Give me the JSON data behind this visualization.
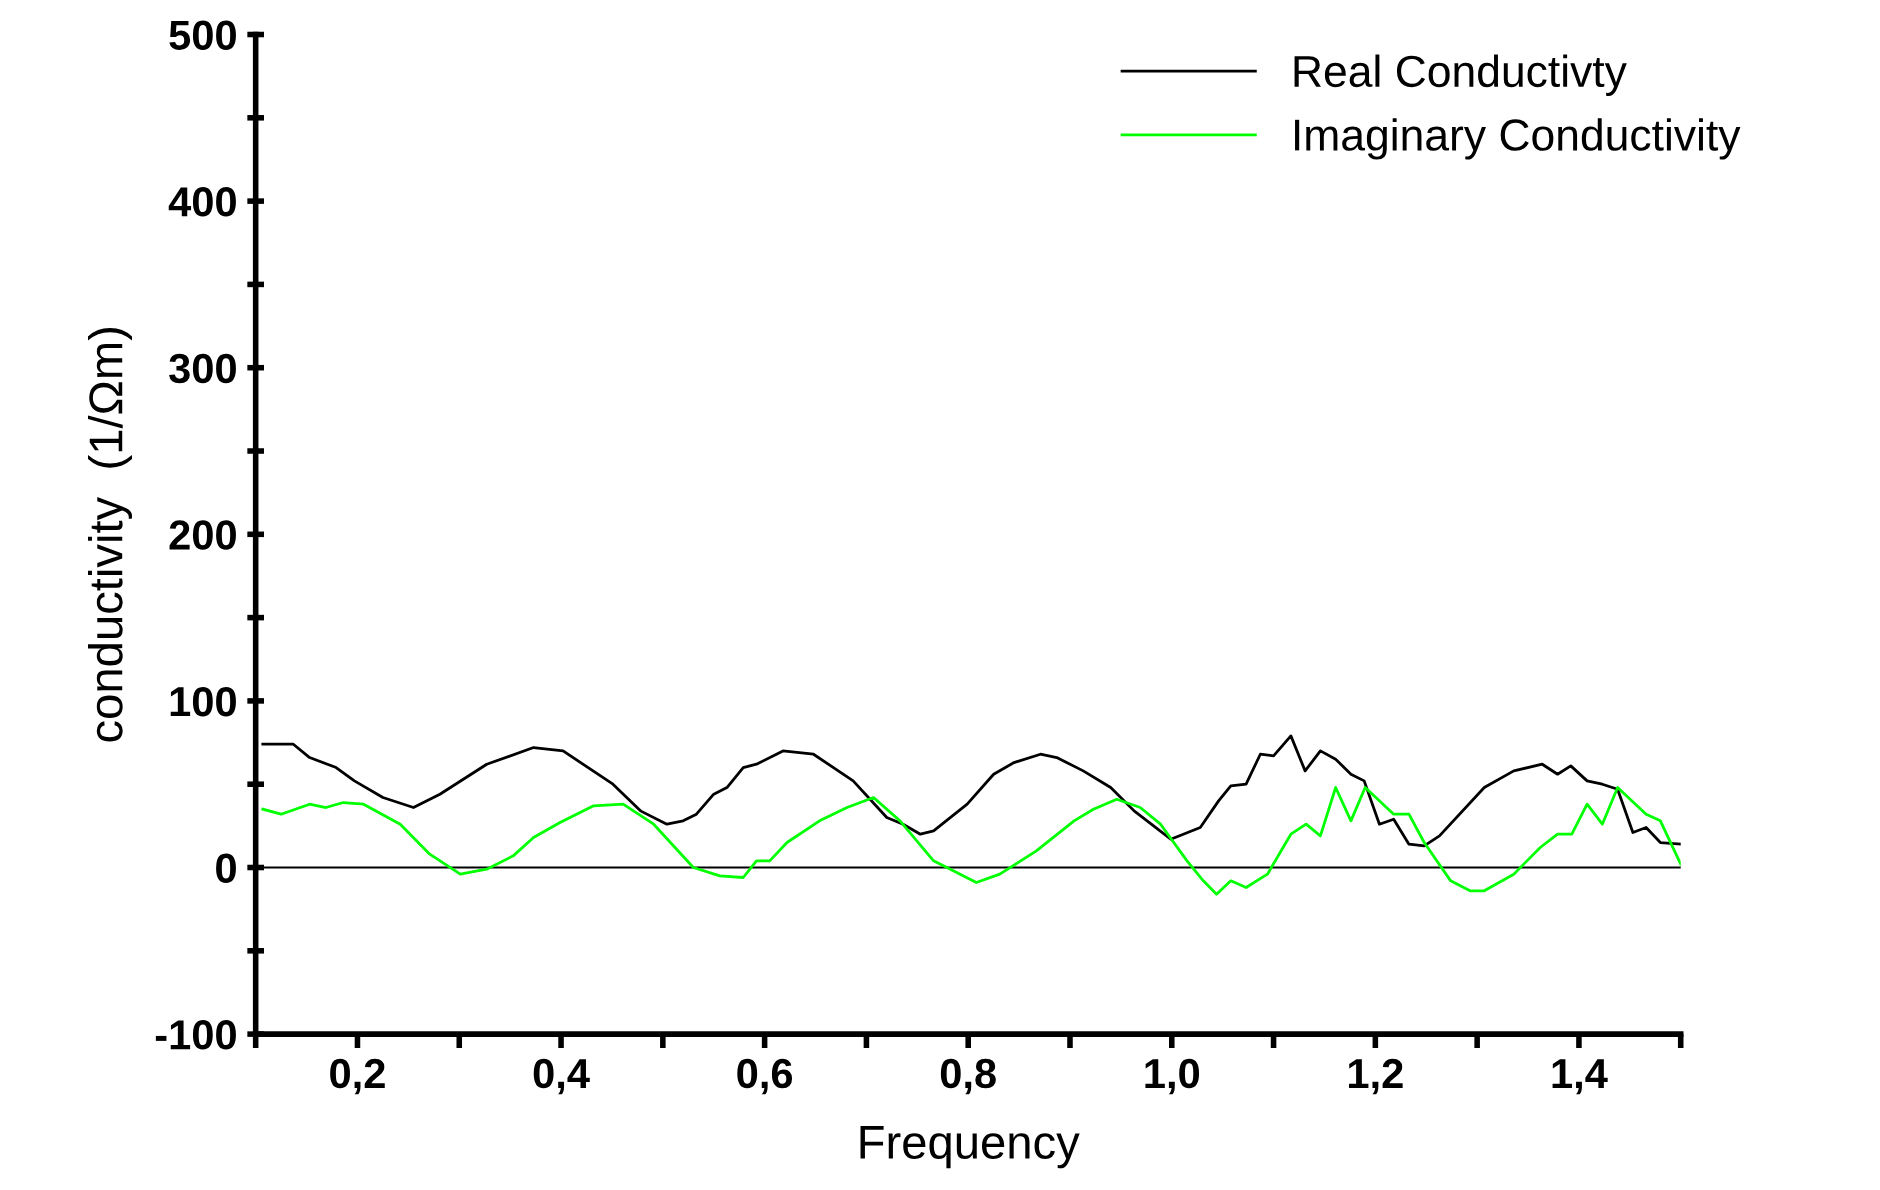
{
  "chart_data": {
    "type": "line",
    "xlabel": "Frequency",
    "ylabel": "conductivity  (1/Ωm)",
    "xlim": [
      0.1,
      1.5
    ],
    "ylim": [
      -100,
      500
    ],
    "xticks": [
      {
        "value": 0.1,
        "label": null
      },
      {
        "value": 0.2,
        "label": "0,2"
      },
      {
        "value": 0.3,
        "label": null
      },
      {
        "value": 0.4,
        "label": "0,4"
      },
      {
        "value": 0.5,
        "label": null
      },
      {
        "value": 0.6,
        "label": "0,6"
      },
      {
        "value": 0.7,
        "label": null
      },
      {
        "value": 0.8,
        "label": "0,8"
      },
      {
        "value": 0.9,
        "label": null
      },
      {
        "value": 1.0,
        "label": "1,0"
      },
      {
        "value": 1.1,
        "label": null
      },
      {
        "value": 1.2,
        "label": "1,2"
      },
      {
        "value": 1.3,
        "label": null
      },
      {
        "value": 1.4,
        "label": "1,4"
      },
      {
        "value": 1.5,
        "label": null
      }
    ],
    "yticks": [
      -100,
      {
        "value": -50,
        "label": null
      },
      0,
      {
        "value": 50,
        "label": null
      },
      100,
      {
        "value": 150,
        "label": null
      },
      200,
      {
        "value": 250,
        "label": null
      },
      300,
      {
        "value": 350,
        "label": null
      },
      400,
      {
        "value": 450,
        "label": null
      },
      500
    ],
    "grid": false,
    "legend": "top right",
    "marker": "none",
    "line_style": "solid",
    "ref_lines": [
      {
        "axis": "y",
        "value": 0,
        "label": null,
        "color": "#000000"
      }
    ],
    "series": [
      {
        "name": "Real Conductivty",
        "color": "#000000",
        "x": [
          0.107,
          0.137,
          0.153,
          0.179,
          0.197,
          0.225,
          0.255,
          0.281,
          0.327,
          0.373,
          0.402,
          0.451,
          0.478,
          0.504,
          0.52,
          0.533,
          0.55,
          0.563,
          0.579,
          0.592,
          0.618,
          0.648,
          0.687,
          0.72,
          0.736,
          0.753,
          0.766,
          0.799,
          0.825,
          0.845,
          0.871,
          0.887,
          0.913,
          0.94,
          0.963,
          0.999,
          1.028,
          1.046,
          1.058,
          1.073,
          1.087,
          1.1,
          1.117,
          1.131,
          1.146,
          1.161,
          1.176,
          1.189,
          1.204,
          1.218,
          1.233,
          1.248,
          1.263,
          1.307,
          1.336,
          1.364,
          1.379,
          1.392,
          1.408,
          1.423,
          1.438,
          1.453,
          1.466,
          1.48,
          1.5
        ],
        "values": [
          74,
          74,
          66,
          60,
          52,
          42,
          36,
          44,
          62,
          72,
          70,
          50,
          34,
          26,
          28,
          32,
          44,
          48,
          60,
          62,
          70,
          68,
          52,
          30,
          26,
          20,
          22,
          38,
          56,
          63,
          68,
          66,
          58,
          48,
          34,
          17,
          24,
          40,
          49,
          50,
          68,
          67,
          79,
          58,
          70,
          65,
          56,
          52,
          26,
          29,
          14,
          13,
          19,
          48,
          58,
          62,
          56,
          61,
          52,
          50,
          47,
          21,
          24,
          15,
          14
        ]
      },
      {
        "name": "Imaginary Conductivity",
        "color": "#00ff00",
        "x": [
          0.107,
          0.125,
          0.153,
          0.169,
          0.186,
          0.206,
          0.242,
          0.271,
          0.301,
          0.327,
          0.353,
          0.373,
          0.399,
          0.432,
          0.461,
          0.491,
          0.53,
          0.556,
          0.579,
          0.592,
          0.605,
          0.622,
          0.654,
          0.681,
          0.707,
          0.733,
          0.766,
          0.808,
          0.831,
          0.867,
          0.904,
          0.923,
          0.946,
          0.969,
          0.989,
          1.015,
          1.031,
          1.044,
          1.058,
          1.073,
          1.094,
          1.117,
          1.132,
          1.146,
          1.161,
          1.176,
          1.19,
          1.218,
          1.233,
          1.248,
          1.274,
          1.293,
          1.307,
          1.336,
          1.362,
          1.379,
          1.393,
          1.408,
          1.423,
          1.438,
          1.466,
          1.48,
          1.5
        ],
        "values": [
          35,
          32,
          38,
          36,
          39,
          38,
          26,
          8,
          -4,
          -1,
          7,
          18,
          27,
          37,
          38,
          26,
          0,
          -5,
          -6,
          4,
          4,
          15,
          28,
          36,
          42,
          28,
          4,
          -9,
          -4,
          10,
          28,
          35,
          41,
          36,
          26,
          4,
          -8,
          -16,
          -8,
          -12,
          -4,
          20,
          26,
          19,
          48,
          28,
          48,
          32,
          32,
          15,
          -8,
          -14,
          -14,
          -4,
          12,
          20,
          20,
          38,
          26,
          48,
          32,
          28,
          2
        ]
      }
    ]
  }
}
